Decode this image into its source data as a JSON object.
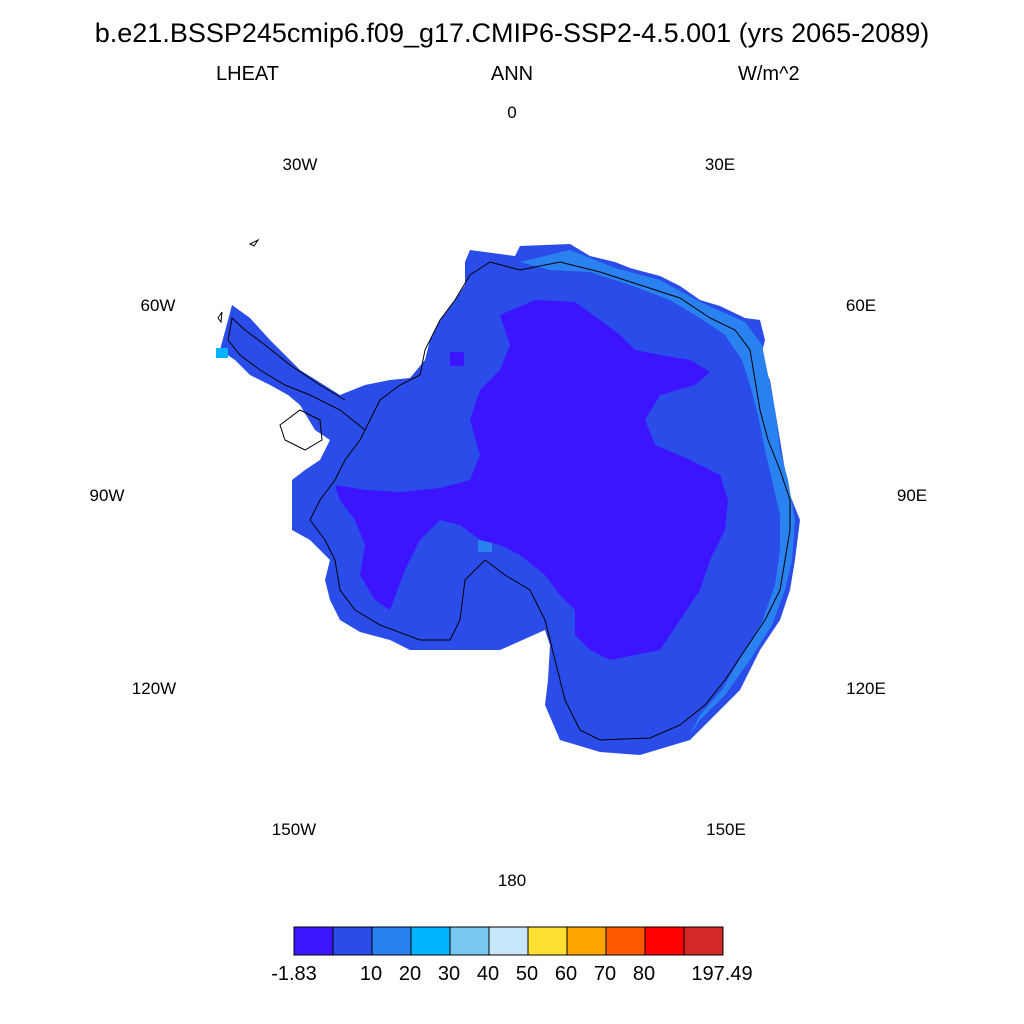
{
  "title": "b.e21.BSSP245cmip6.f09_g17.CMIP6-SSP2-4.5.001 (yrs 2065-2089)",
  "variable": "LHEAT",
  "season": "ANN",
  "units": "W/m^2",
  "longitude_labels": [
    {
      "id": "lon-0",
      "text": "0"
    },
    {
      "id": "lon-30e",
      "text": "30E"
    },
    {
      "id": "lon-60e",
      "text": "60E"
    },
    {
      "id": "lon-90e",
      "text": "90E"
    },
    {
      "id": "lon-120e",
      "text": "120E"
    },
    {
      "id": "lon-150e",
      "text": "150E"
    },
    {
      "id": "lon-180",
      "text": "180"
    },
    {
      "id": "lon-150w",
      "text": "150W"
    },
    {
      "id": "lon-120w",
      "text": "120W"
    },
    {
      "id": "lon-90w",
      "text": "90W"
    },
    {
      "id": "lon-60w",
      "text": "60W"
    },
    {
      "id": "lon-30w",
      "text": "30W"
    }
  ],
  "colorbar": {
    "colors": [
      "#3c14ff",
      "#2a4ce8",
      "#2a82f0",
      "#00b4ff",
      "#78c8f0",
      "#c8e6fa",
      "#ffe032",
      "#ffa500",
      "#ff5a00",
      "#ff0000",
      "#d22828"
    ],
    "labels": [
      "-1.83",
      "10",
      "20",
      "30",
      "40",
      "50",
      "60",
      "70",
      "80",
      "197.49"
    ]
  },
  "map_colors": {
    "interior_low": "#3c14ff",
    "main": "#2a4ce8",
    "coastal": "#2a82f0",
    "peninsula_tip": "#00b4ff",
    "coastline": "#000000"
  }
}
